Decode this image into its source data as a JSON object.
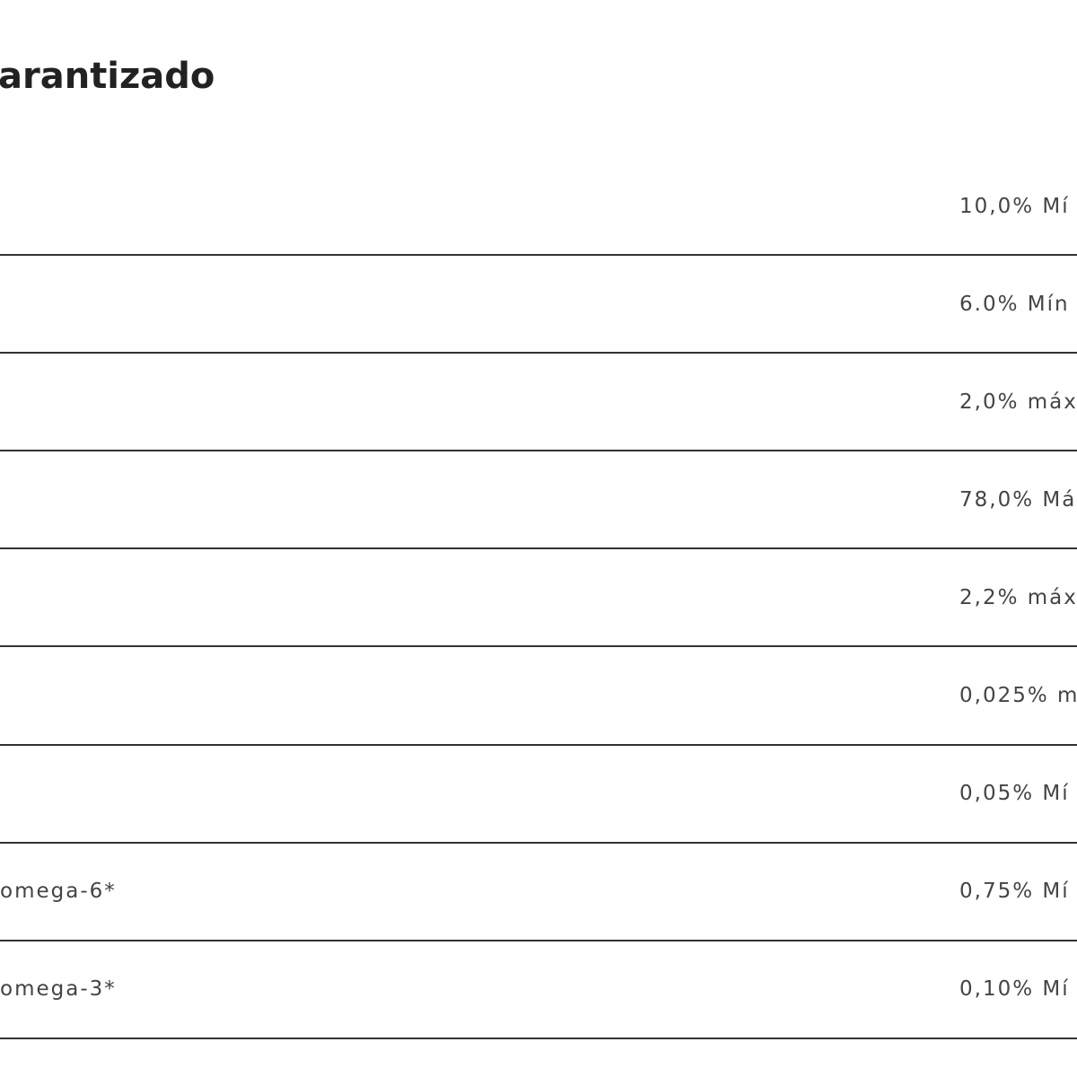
{
  "heading": "arantizado",
  "table": {
    "rows": [
      {
        "value": "10,0% Mí"
      },
      {
        "value": "6.0% Mín"
      },
      {
        "value": "2,0% máx"
      },
      {
        "value": "78,0% Má"
      },
      {
        "value": "2,2% máx"
      },
      {
        "value": "0,025% m"
      },
      {
        "value": "0,05% Mí"
      },
      {
        "label": "omega-6*",
        "value": "0,75% Mí"
      },
      {
        "label": "omega-3*",
        "value": "0,10% Mí"
      }
    ]
  }
}
